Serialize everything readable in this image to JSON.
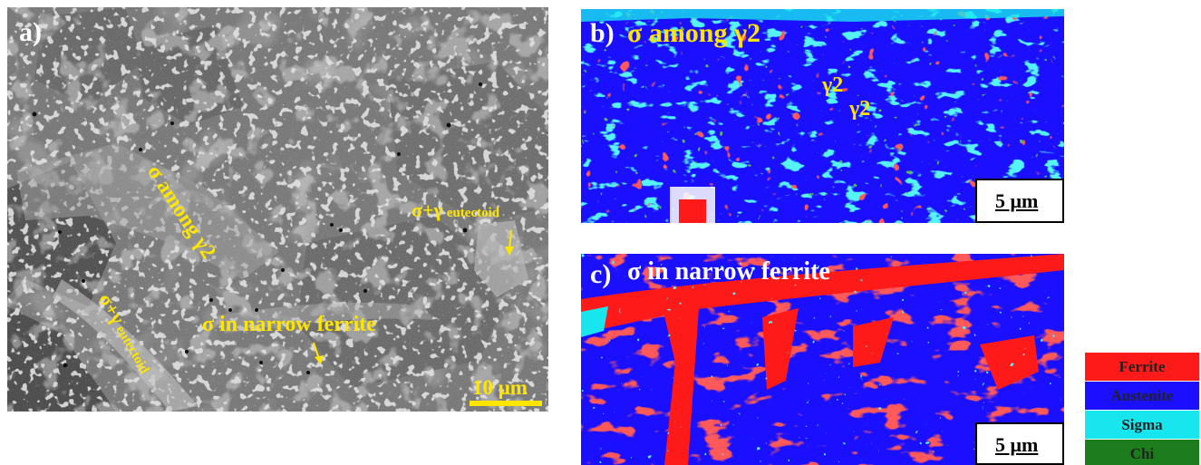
{
  "panel_a": {
    "letter": "a)",
    "labels": {
      "sigma_among": "σ among γ2",
      "eutectoid_right_main": "σ+γ",
      "eutectoid_right_sub": "eutectoid",
      "eutectoid_left_main": "σ+γ",
      "eutectoid_left_sub": "eutectoid",
      "narrow_ferrite": "σ in narrow ferrite",
      "scale": "10 μm"
    },
    "colors": {
      "base": "#6b6b6b",
      "bright": "#b8b8b8",
      "dark": "#3c3c3c",
      "label": "#ffe600"
    }
  },
  "panel_b": {
    "letter": "b)",
    "title": "σ among γ2",
    "gamma_label_1": "γ2",
    "gamma_label_2": "γ2",
    "scale": "5 μm"
  },
  "panel_c": {
    "letter": "c)",
    "title": "σ in narrow ferrite",
    "scale": "5 μm"
  },
  "legend": {
    "items": [
      {
        "label": "Ferrite",
        "color": "#ff1a1a"
      },
      {
        "label": "Austenite",
        "color": "#1a10ff"
      },
      {
        "label": "Sigma",
        "color": "#18e6ee"
      },
      {
        "label": "Chi",
        "color": "#1b7d1b"
      }
    ]
  }
}
